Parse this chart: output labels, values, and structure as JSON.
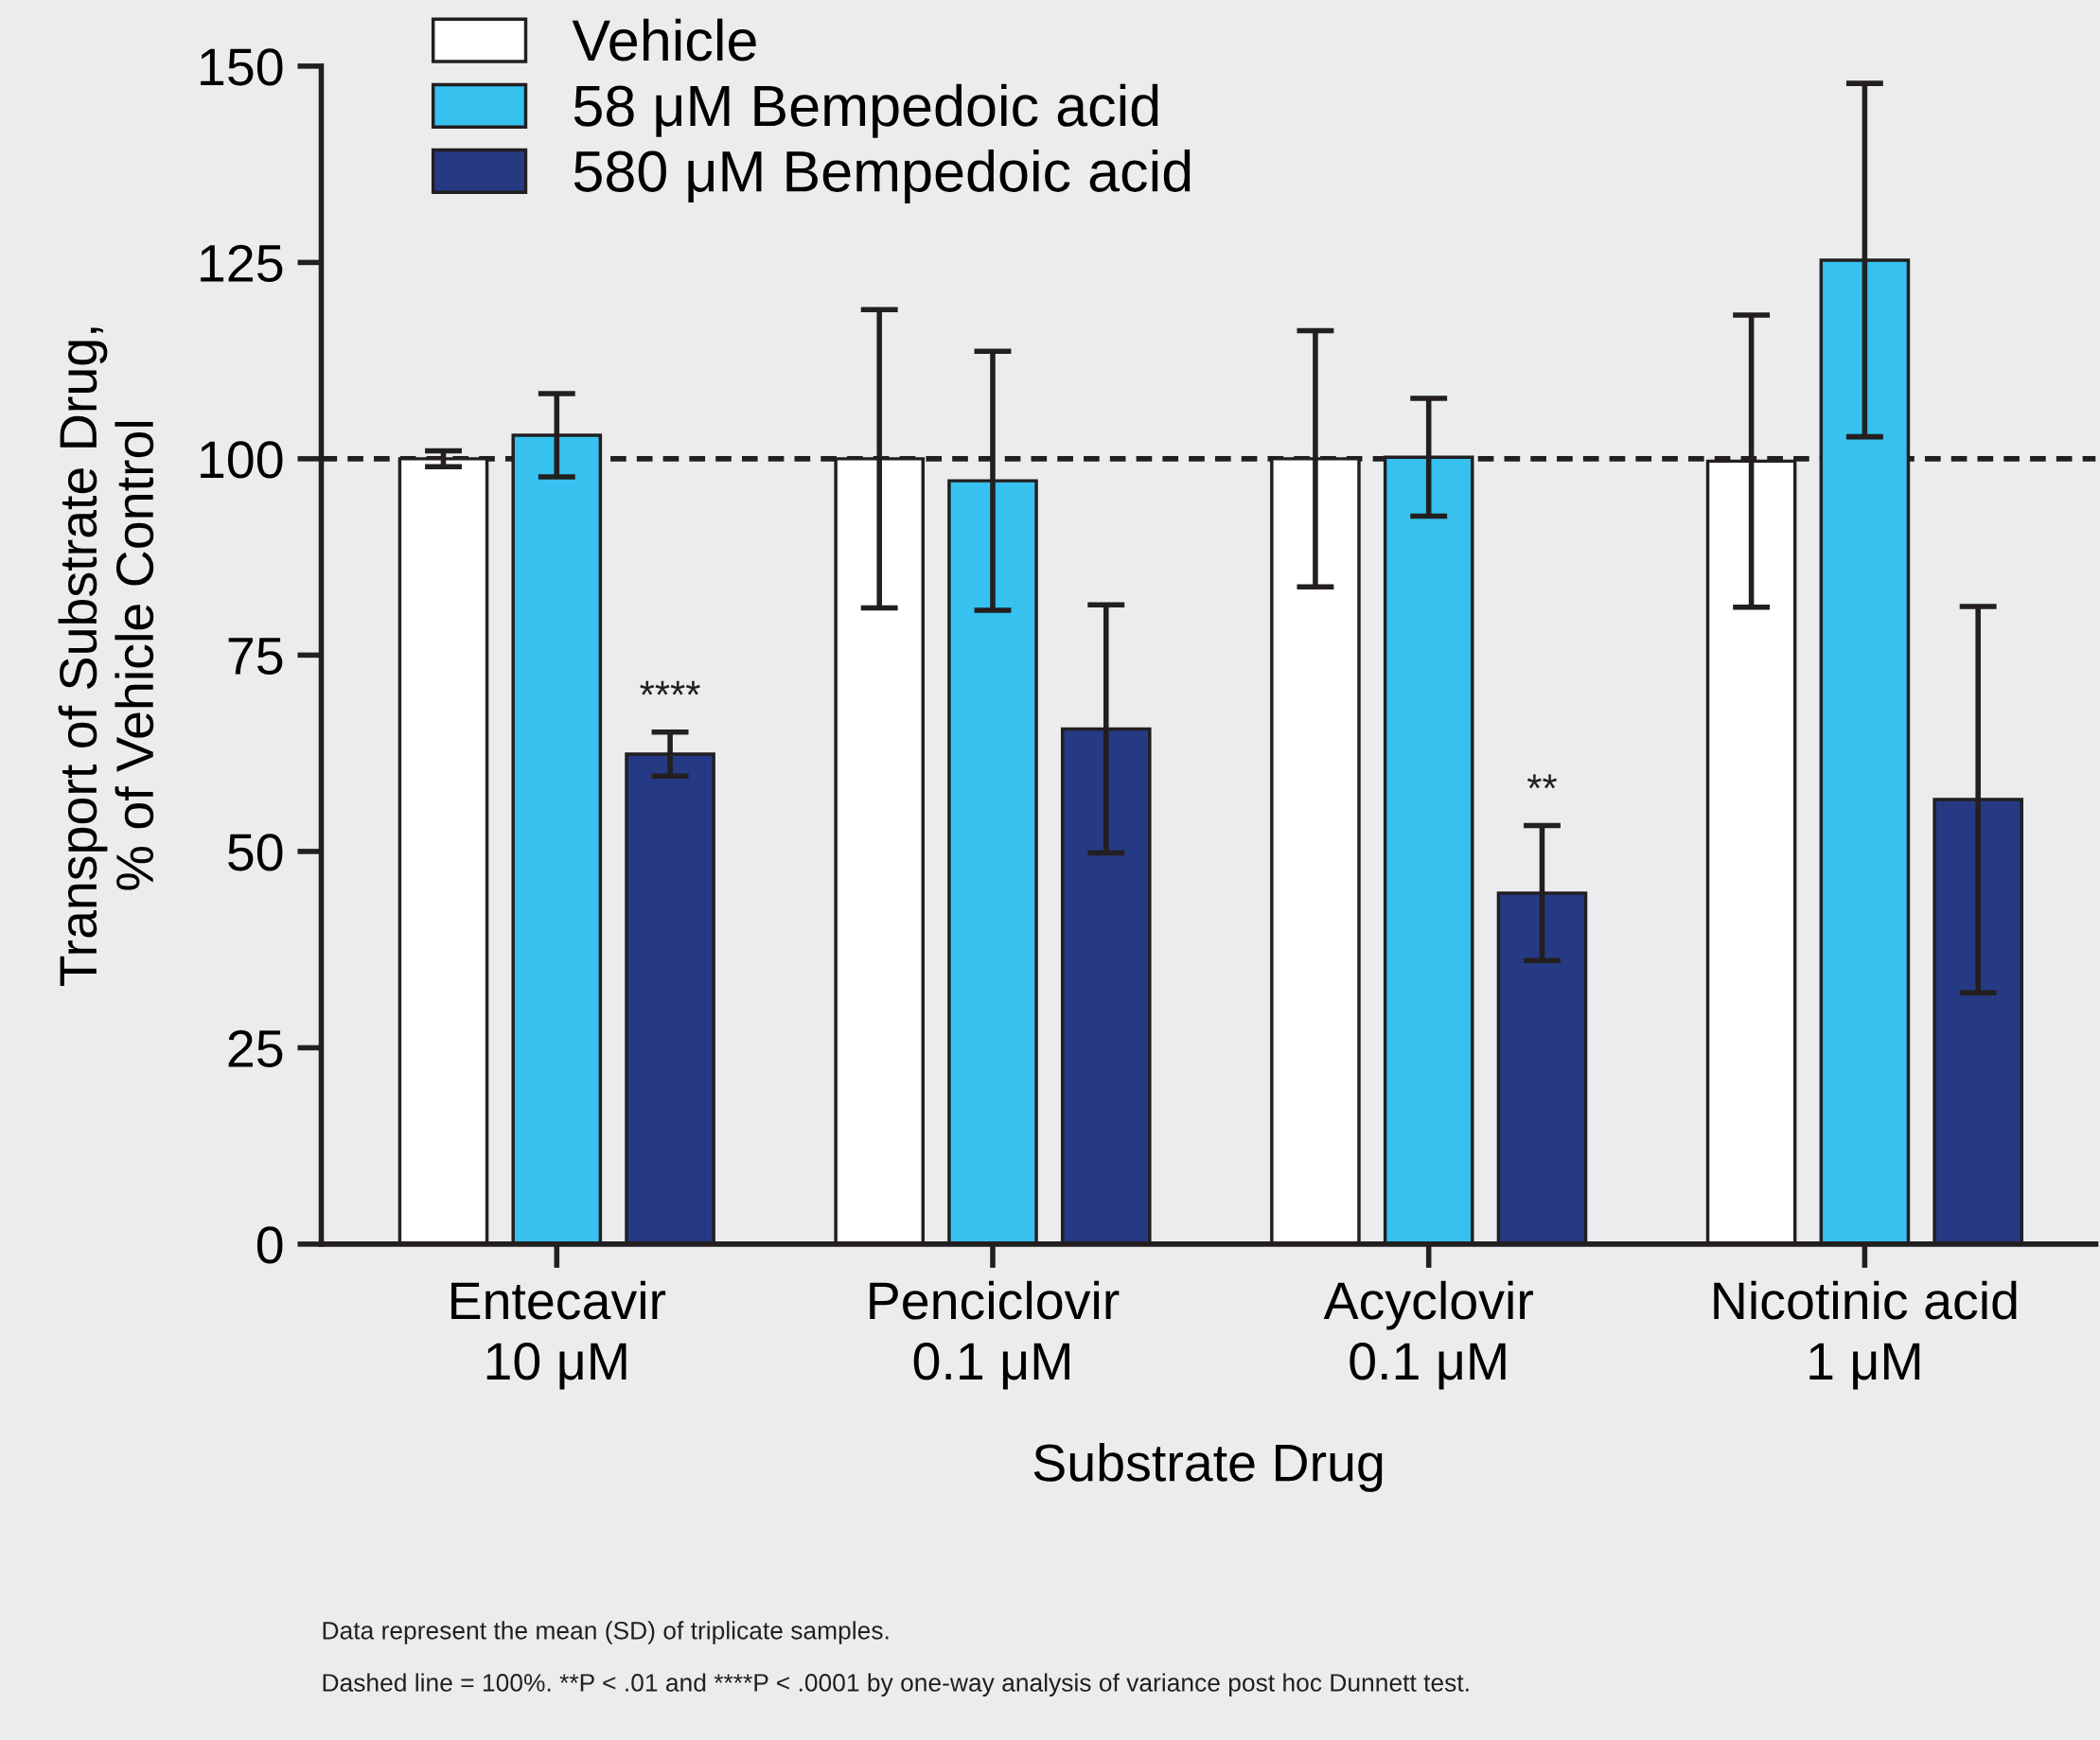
{
  "chart_data": {
    "type": "bar",
    "xlabel": "Substrate Drug",
    "ylabel": "Transport of Substrate Drug,\n% of Vehicle Control",
    "categories": [
      "Entecavir\n10 μM",
      "Penciclovir\n0.1 μM",
      "Acyclovir\n0.1 μM",
      "Nicotinic acid\n1 μM"
    ],
    "series": [
      {
        "name": "Vehicle",
        "color": "#ffffff",
        "values": [
          100,
          100,
          100,
          99.7
        ],
        "errors": [
          1,
          19,
          16.3,
          18.6
        ]
      },
      {
        "name": "58 μM Bempedoic acid",
        "color": "#36c1ee",
        "values": [
          103,
          97.2,
          100.2,
          125.3
        ],
        "errors": [
          5.3,
          16.5,
          7.5,
          22.5
        ]
      },
      {
        "name": "580 μM Bempedoic acid",
        "color": "#253a82",
        "values": [
          62.4,
          65.6,
          44.7,
          56.6
        ],
        "errors": [
          2.8,
          15.8,
          8.6,
          24.6
        ],
        "value_labels": [
          "****",
          null,
          "**",
          null
        ]
      }
    ],
    "ylim": [
      0,
      150
    ],
    "yticks": [
      0,
      25,
      50,
      75,
      100,
      125,
      150
    ],
    "ref_lines": [
      {
        "axis": "y",
        "value": 100,
        "line_style": "dashed",
        "color": "#231f20"
      }
    ],
    "legend": "top left",
    "grid": false,
    "annotations": [
      "Data represent the mean (SD) of triplicate samples.",
      "Dashed line = 100%. **P < .01 and ****P < .0001 by one-way analysis of variance post hoc Dunnett test."
    ]
  }
}
